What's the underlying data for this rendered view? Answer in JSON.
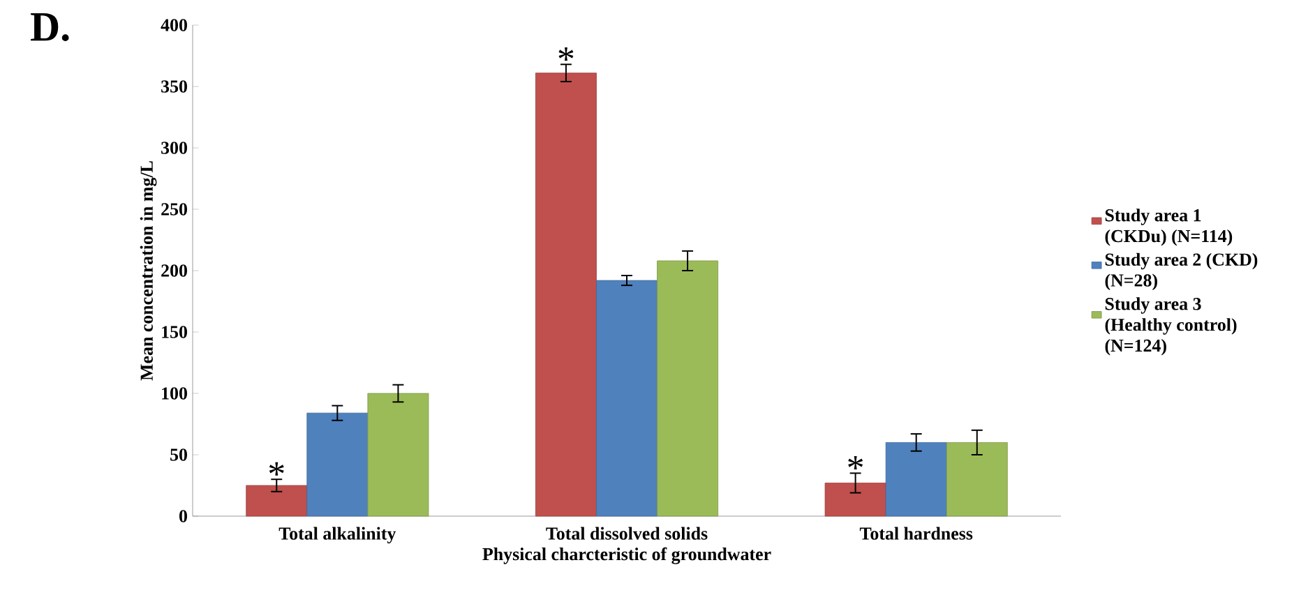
{
  "chart_data": {
    "type": "bar",
    "categories": [
      "Total alkalinity",
      "Total dissolved solids",
      "Total hardness"
    ],
    "xlabel": "Physical charcteristic  of groundwater",
    "ylabel": "Mean concentration in mg/L",
    "series": [
      {
        "name": "Study area 1 (CKDu) (N=114)",
        "color": "#c0504d",
        "values": [
          25,
          361,
          27
        ],
        "errors": [
          5,
          7,
          8
        ]
      },
      {
        "name": "Study area 2 (CKD) (N=28)",
        "color": "#4f81bd",
        "values": [
          84,
          192,
          60
        ],
        "errors": [
          6,
          4,
          7
        ]
      },
      {
        "name": "Study area 3 (Healthy control) (N=124)",
        "color": "#9bbb59",
        "values": [
          100,
          208,
          60
        ],
        "errors": [
          7,
          8,
          10
        ]
      }
    ],
    "ylim": [
      0,
      400
    ],
    "yticks": [
      0,
      50,
      100,
      150,
      200,
      250,
      300,
      350,
      400
    ],
    "legend": "right",
    "annotations": [
      "D.",
      "*",
      "*",
      "*"
    ]
  }
}
